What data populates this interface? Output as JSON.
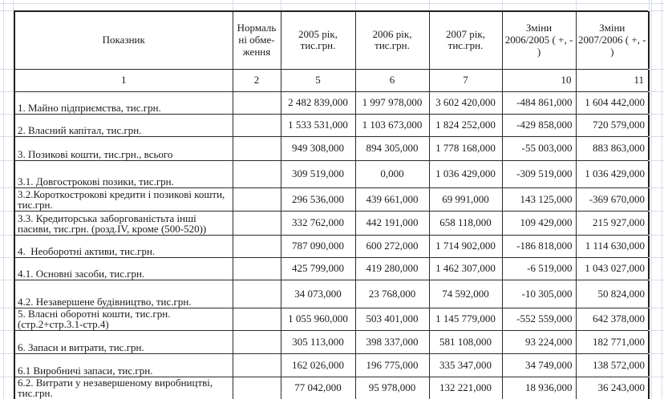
{
  "colors": {
    "table_border": "#1f1f1f",
    "cell_border": "#2b2b2b",
    "text": "#1b1b20",
    "margin_gridline": "#d7dce6",
    "background": "#ffffff"
  },
  "table": {
    "header": {
      "indicator": "Показник",
      "limits": "Нормальні обме-ження",
      "y2005": "2005 рік, тис.грн.",
      "y2006": "2006 рік, тис.грн.",
      "y2007": "2007 рік, тис.грн.",
      "chg_2006_2005": "Зміни 2006/2005 ( +, - )",
      "chg_2007_2006": "Зміни 2007/2006 ( +, - )"
    },
    "numbering": [
      "1",
      "2",
      "5",
      "6",
      "7",
      "10",
      "11"
    ],
    "rows": [
      {
        "name": "1. Майно підприємства, тис.грн.",
        "limit": "",
        "y2005": "2 482 839,000",
        "y2006": "1 997 978,000",
        "y2007": "3 602 420,000",
        "chg_2006_2005": "-484 861,000",
        "chg_2007_2006": "1 604 442,000"
      },
      {
        "name": "2. Власний капітал, тис.грн.",
        "limit": "",
        "y2005": "1 533 531,000",
        "y2006": "1 103 673,000",
        "y2007": "1 824 252,000",
        "chg_2006_2005": "-429 858,000",
        "chg_2007_2006": "720 579,000"
      },
      {
        "name": "3. Позикові кошти, тис.грн., всього",
        "limit": "",
        "y2005": "949 308,000",
        "y2006": "894 305,000",
        "y2007": "1 778 168,000",
        "chg_2006_2005": "-55 003,000",
        "chg_2007_2006": "883 863,000"
      },
      {
        "name": "3.1. Довгострокові позики, тис.грн.",
        "limit": "",
        "y2005": "309 519,000",
        "y2006": "0,000",
        "y2007": "1 036 429,000",
        "chg_2006_2005": "-309 519,000",
        "chg_2007_2006": "1 036 429,000"
      },
      {
        "name": "3.2.Короткострокові кредити і позикові кошти, тис.грн.",
        "limit": "",
        "y2005": "296 536,000",
        "y2006": "439 661,000",
        "y2007": "69 991,000",
        "chg_2006_2005": "143 125,000",
        "chg_2007_2006": "-369 670,000"
      },
      {
        "name": "3.3. Кредиторська заборгованістьта інші пасиви, тис.грн. (розд.IV, кроме (500-520))",
        "limit": "",
        "y2005": "332 762,000",
        "y2006": "442 191,000",
        "y2007": "658 118,000",
        "chg_2006_2005": "109 429,000",
        "chg_2007_2006": "215 927,000"
      },
      {
        "name": "4.  Необоротні активи, тис.грн.",
        "limit": "",
        "y2005": "787 090,000",
        "y2006": "600 272,000",
        "y2007": "1 714 902,000",
        "chg_2006_2005": "-186 818,000",
        "chg_2007_2006": "1 114 630,000"
      },
      {
        "name": "4.1. Основні засоби, тис.грн.",
        "limit": "",
        "y2005": "425 799,000",
        "y2006": "419 280,000",
        "y2007": "1 462 307,000",
        "chg_2006_2005": "-6 519,000",
        "chg_2007_2006": "1 043 027,000"
      },
      {
        "name": "4.2. Незавершене будівництво, тис.грн.",
        "limit": "",
        "y2005": "34 073,000",
        "y2006": "23 768,000",
        "y2007": "74 592,000",
        "chg_2006_2005": "-10 305,000",
        "chg_2007_2006": "50 824,000"
      },
      {
        "name": "5. Власні оборотні кошти, тис.грн. (стр.2+стр.3.1-стр.4)",
        "limit": "",
        "y2005": "1 055 960,000",
        "y2006": "503 401,000",
        "y2007": "1 145 779,000",
        "chg_2006_2005": "-552 559,000",
        "chg_2007_2006": "642 378,000"
      },
      {
        "name": "6. Запаси и витрати, тис.грн.",
        "limit": "",
        "y2005": "305 113,000",
        "y2006": "398 337,000",
        "y2007": "581 108,000",
        "chg_2006_2005": "93 224,000",
        "chg_2007_2006": "182 771,000"
      },
      {
        "name": "6.1 Виробничі запаси, тис.грн.",
        "limit": "",
        "y2005": "162 026,000",
        "y2006": "196 775,000",
        "y2007": "335 347,000",
        "chg_2006_2005": "34 749,000",
        "chg_2007_2006": "138 572,000"
      },
      {
        "name": "6.2. Витрати у незавершеному виробництві, тис.грн.",
        "limit": "",
        "y2005": "77 042,000",
        "y2006": "95 978,000",
        "y2007": "132 221,000",
        "chg_2006_2005": "18 936,000",
        "chg_2007_2006": "36 243,000"
      }
    ]
  }
}
